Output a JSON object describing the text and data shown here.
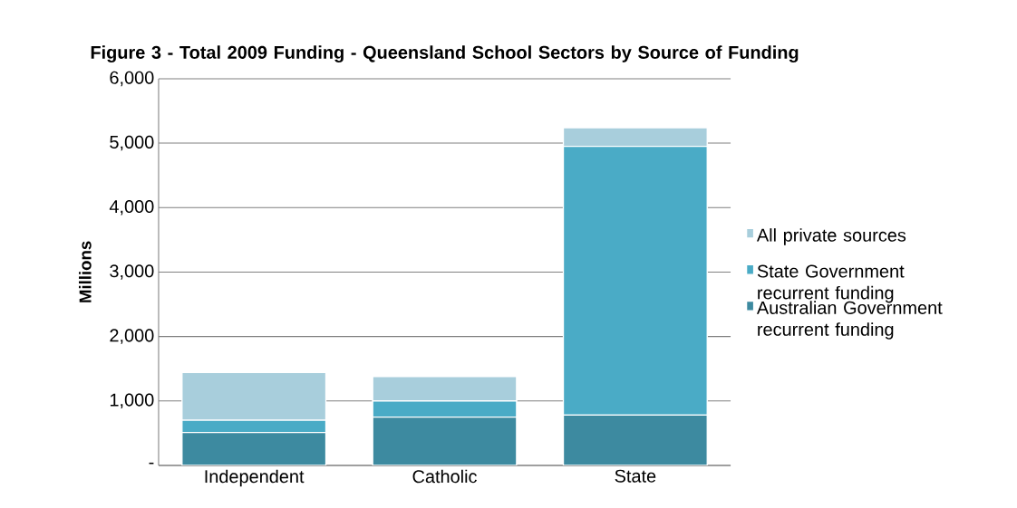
{
  "chart_data": {
    "type": "bar",
    "stacked": true,
    "title": "Figure 3 - Total 2009 Funding - Queensland School Sectors by Source of Funding",
    "ylabel": "Millions",
    "categories": [
      "Independent",
      "Catholic",
      "State"
    ],
    "series": [
      {
        "name": "Australian Government recurrent funding",
        "color": "#3d8aa0",
        "values": [
          510,
          750,
          780
        ]
      },
      {
        "name": "State Government recurrent funding",
        "color": "#4aabc6",
        "values": [
          190,
          250,
          4170
        ]
      },
      {
        "name": "All private sources",
        "color": "#a8cedc",
        "values": [
          740,
          380,
          290
        ]
      }
    ],
    "ylim": [
      0,
      6000
    ],
    "yticks": [
      {
        "value": 0,
        "label": "-"
      },
      {
        "value": 1000,
        "label": "1,000"
      },
      {
        "value": 2000,
        "label": "2,000"
      },
      {
        "value": 3000,
        "label": "3,000"
      },
      {
        "value": 4000,
        "label": "4,000"
      },
      {
        "value": 5000,
        "label": "5,000"
      },
      {
        "value": 6000,
        "label": "6,000"
      }
    ],
    "grid": "y",
    "legend": "right"
  }
}
